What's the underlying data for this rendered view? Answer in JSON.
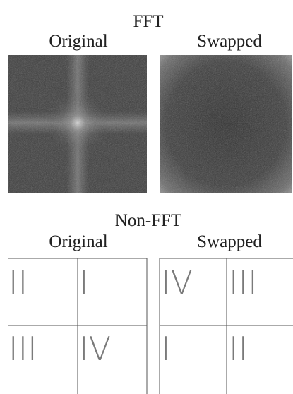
{
  "fft": {
    "title": "FFT",
    "labels": [
      "Original",
      "Swapped"
    ]
  },
  "non_fft": {
    "title": "Non-FFT",
    "labels": [
      "Original",
      "Swapped"
    ],
    "original": [
      "II",
      "I",
      "III",
      "IV"
    ],
    "swapped": [
      "IV",
      "III",
      "I",
      "II"
    ]
  }
}
